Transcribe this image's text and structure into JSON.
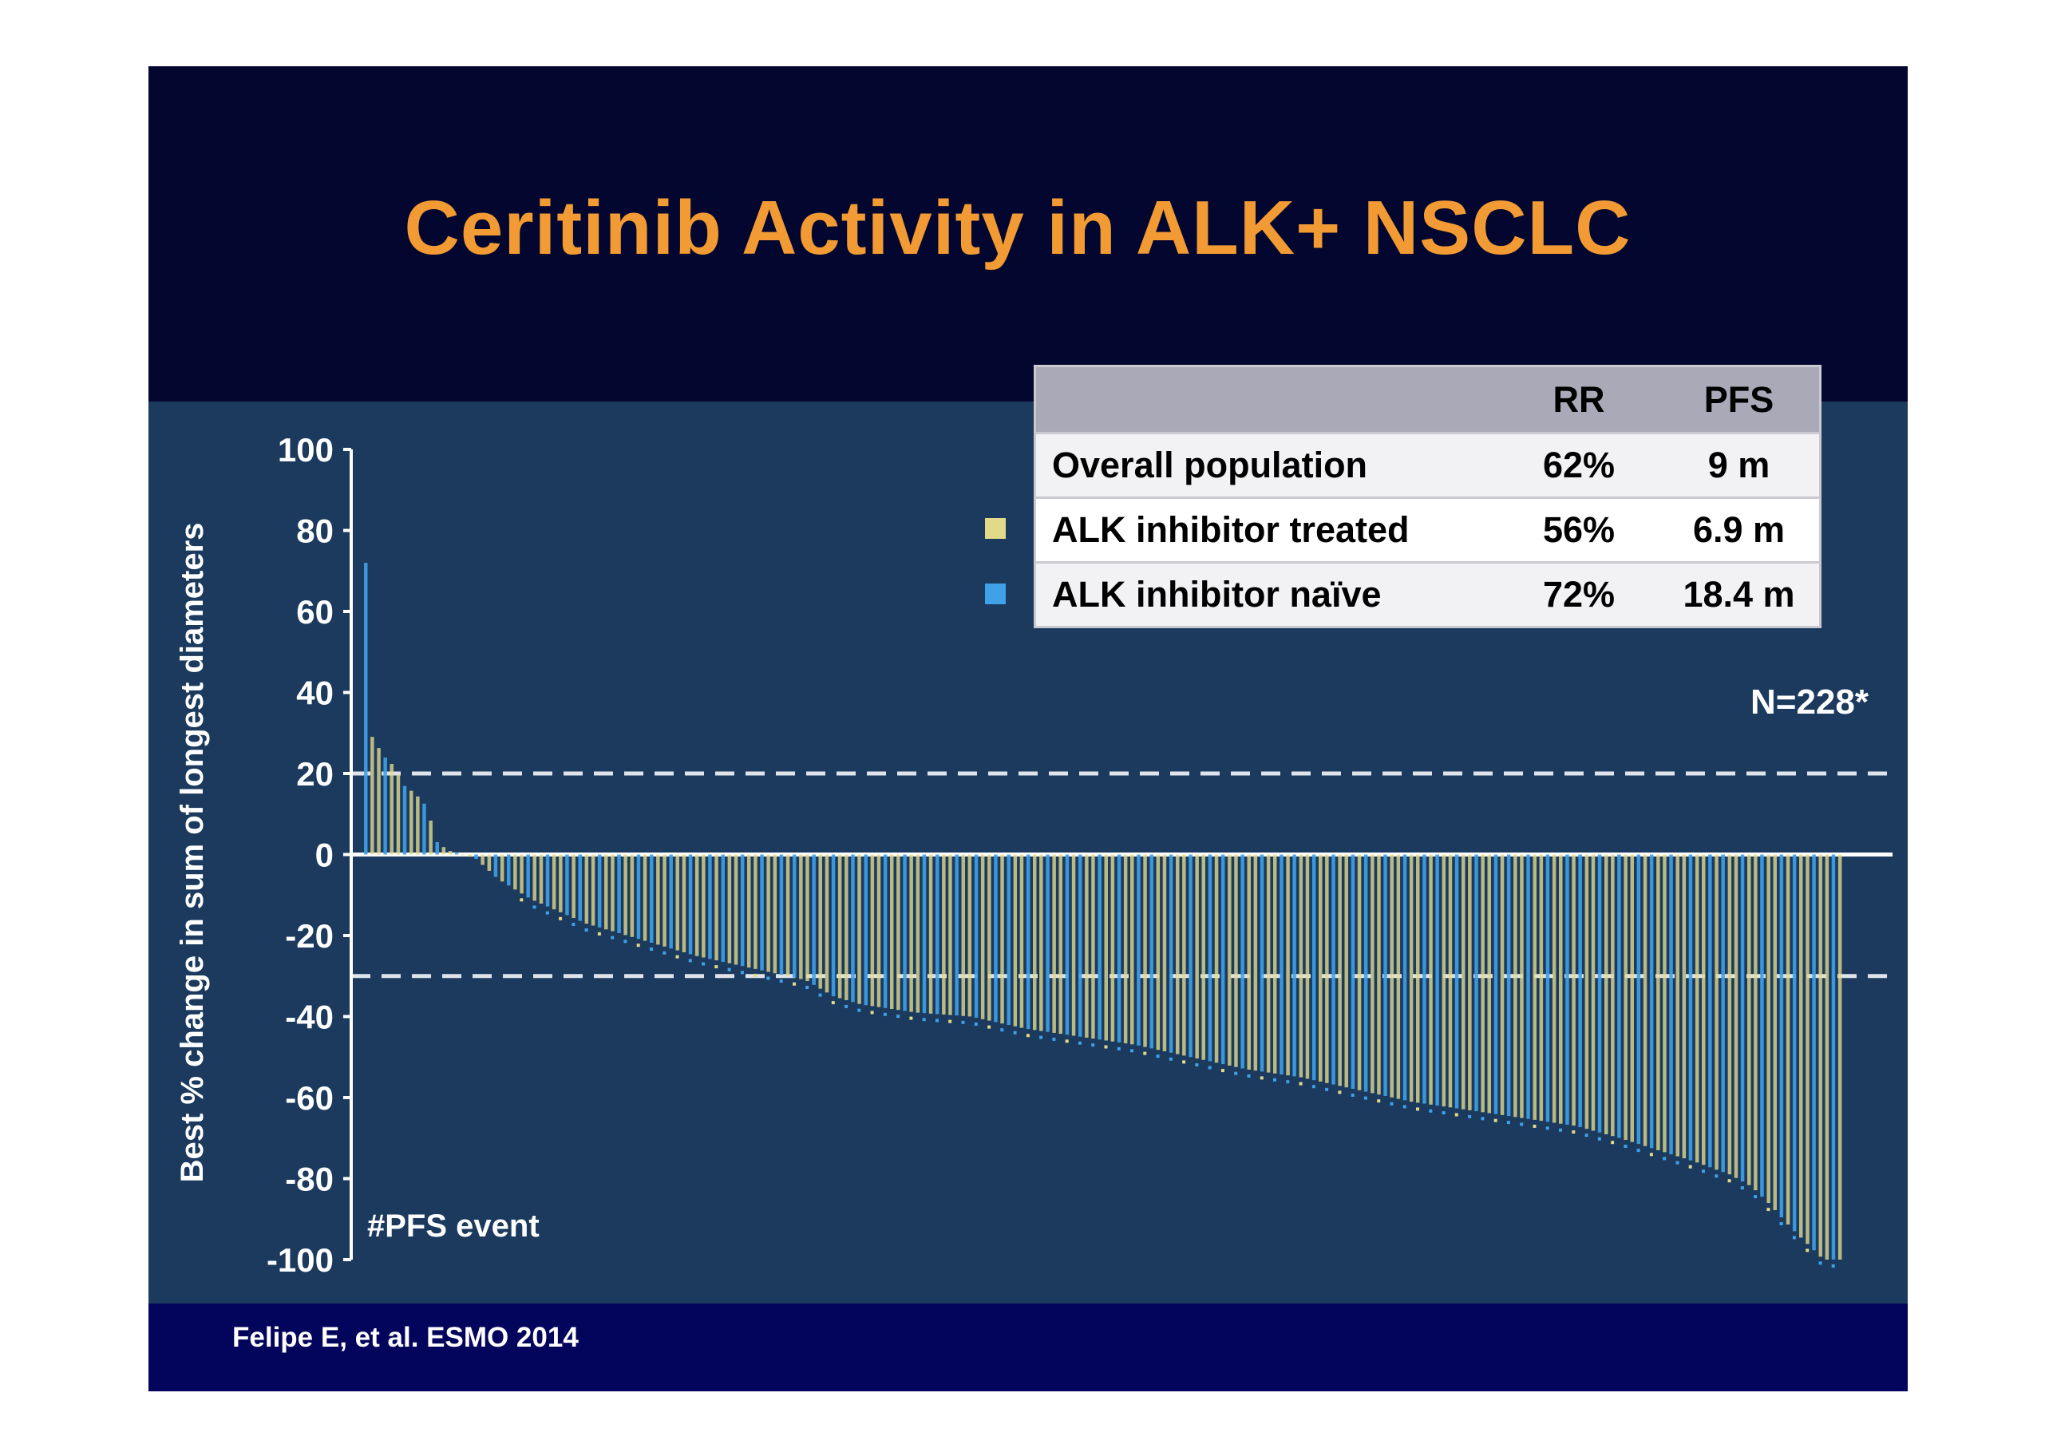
{
  "title": "Ceritinib Activity in ALK+  NSCLC",
  "citation": "Felipe E, et al. ESMO 2014",
  "colors": {
    "title": "#f29a33",
    "header_band": "#03072f",
    "chart_panel": "#1b3a5e",
    "footer_band": "#03045c",
    "alk_treated": "#b8b68a",
    "alk_naive": "#3a98d6"
  },
  "summary_table": {
    "columns": [
      "",
      "RR",
      "PFS"
    ],
    "rows": [
      {
        "label": "Overall population",
        "rr": "62%",
        "pfs": "9 m"
      },
      {
        "label": "ALK inhibitor treated",
        "rr": "56%",
        "pfs": "6.9 m"
      },
      {
        "label": "ALK inhibitor naïve",
        "rr": "72%",
        "pfs": "18.4 m"
      }
    ]
  },
  "chart_data": {
    "type": "bar",
    "subtype": "waterfall",
    "ylabel": "Best  % change in sum of longest diameters",
    "xlabel": "",
    "ylim": [
      -100,
      100
    ],
    "yticks": [
      100,
      80,
      60,
      40,
      20,
      0,
      -20,
      -40,
      -60,
      -80,
      -100
    ],
    "reference_lines": [
      20,
      -30
    ],
    "annotations": [
      "N=228*",
      "#PFS event"
    ],
    "legend": {
      "placement": "top, beside table",
      "items": [
        {
          "name": "ALK inhibitor treated",
          "color": "#e2d98a"
        },
        {
          "name": "ALK inhibitor naïve",
          "color": "#3fa1e8"
        }
      ]
    },
    "n": 228,
    "waterfall_points": [
      [
        0,
        72
      ],
      [
        0.8,
        30
      ],
      [
        2,
        27
      ],
      [
        3.5,
        24
      ],
      [
        5,
        22
      ],
      [
        7,
        17
      ],
      [
        9,
        15
      ],
      [
        11,
        12
      ],
      [
        13,
        3
      ],
      [
        15,
        1
      ],
      [
        20,
        -1
      ],
      [
        24,
        -6
      ],
      [
        30,
        -11
      ],
      [
        40,
        -17
      ],
      [
        50,
        -21
      ],
      [
        60,
        -25
      ],
      [
        70,
        -28
      ],
      [
        80,
        -31
      ],
      [
        85,
        -35
      ],
      [
        90,
        -37
      ],
      [
        100,
        -39
      ],
      [
        110,
        -40
      ],
      [
        120,
        -43
      ],
      [
        130,
        -45
      ],
      [
        140,
        -47
      ],
      [
        150,
        -50
      ],
      [
        160,
        -53
      ],
      [
        170,
        -55
      ],
      [
        180,
        -58
      ],
      [
        190,
        -61
      ],
      [
        200,
        -63
      ],
      [
        210,
        -65
      ],
      [
        220,
        -67
      ],
      [
        228,
        -70
      ],
      [
        235,
        -73
      ],
      [
        242,
        -76
      ],
      [
        248,
        -79
      ],
      [
        252,
        -82
      ],
      [
        255,
        -86
      ],
      [
        259,
        -92
      ],
      [
        262,
        -96
      ],
      [
        265,
        -100
      ],
      [
        268,
        -100
      ]
    ]
  }
}
